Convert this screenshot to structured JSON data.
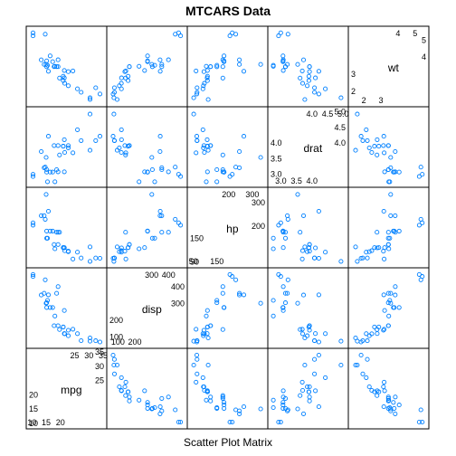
{
  "title": "MTCARS Data",
  "subtitle": "Scatter Plot Matrix",
  "colors": {
    "point": "#0080ff",
    "frame": "#000000",
    "background": "#ffffff"
  },
  "chart_data": {
    "type": "scatter",
    "title": "MTCARS Data",
    "xlabel": "Scatter Plot Matrix",
    "ylabel": "",
    "grid": false,
    "legend": "none",
    "variables": [
      "mpg",
      "disp",
      "hp",
      "drat",
      "wt"
    ],
    "ranges": {
      "mpg": [
        9.3,
        35.0
      ],
      "disp": [
        55,
        490
      ],
      "hp": [
        40,
        350
      ],
      "drat": [
        2.7,
        5.05
      ],
      "wt": [
        1.3,
        5.6
      ]
    },
    "ticks": {
      "mpg": {
        "low": [
          "10",
          "15",
          "20"
        ],
        "high": [
          "25",
          "30",
          "35"
        ]
      },
      "disp": {
        "low": [
          "100",
          "200"
        ],
        "high": [
          "300",
          "400"
        ]
      },
      "hp": {
        "low": [
          "50",
          "150"
        ],
        "high": [
          "200",
          "300"
        ]
      },
      "drat": {
        "low": [
          "3.0",
          "3.5",
          "4.0"
        ],
        "high": [
          "4.0",
          "4.5",
          "5.0"
        ]
      },
      "wt": {
        "low": [
          "2",
          "3"
        ],
        "high": [
          "4",
          "5"
        ]
      }
    },
    "data": {
      "mpg": [
        21.0,
        21.0,
        22.8,
        21.4,
        18.7,
        18.1,
        14.3,
        24.4,
        22.8,
        19.2,
        17.8,
        16.4,
        17.3,
        15.2,
        10.4,
        10.4,
        14.7,
        32.4,
        30.4,
        33.9,
        21.5,
        15.5,
        15.2,
        13.3,
        19.2,
        27.3,
        26.0,
        30.4,
        15.8,
        19.7,
        15.0,
        21.4
      ],
      "disp": [
        160,
        160,
        108,
        258,
        360,
        225,
        360,
        146.7,
        140.8,
        167.6,
        167.6,
        275.8,
        275.8,
        275.8,
        472,
        460,
        440,
        78.7,
        75.7,
        71.1,
        120.1,
        318,
        304,
        350,
        400,
        79,
        120.3,
        95.1,
        351,
        145,
        301,
        121
      ],
      "hp": [
        110,
        110,
        93,
        110,
        175,
        105,
        245,
        62,
        95,
        123,
        123,
        180,
        180,
        180,
        205,
        215,
        230,
        66,
        52,
        65,
        97,
        150,
        150,
        245,
        175,
        66,
        91,
        113,
        264,
        175,
        335,
        109
      ],
      "drat": [
        3.9,
        3.9,
        3.85,
        3.08,
        3.15,
        2.76,
        3.21,
        3.69,
        3.92,
        3.92,
        3.92,
        3.07,
        3.07,
        3.07,
        2.93,
        3.0,
        3.23,
        4.08,
        4.93,
        4.22,
        3.7,
        2.76,
        3.15,
        3.73,
        3.08,
        4.08,
        4.43,
        3.77,
        4.22,
        3.62,
        3.54,
        4.11
      ],
      "wt": [
        2.62,
        2.875,
        2.32,
        3.215,
        3.44,
        3.46,
        3.57,
        3.19,
        3.15,
        3.44,
        3.44,
        4.07,
        3.73,
        3.78,
        5.25,
        5.424,
        5.345,
        2.2,
        1.615,
        1.835,
        2.465,
        3.52,
        3.435,
        3.84,
        3.845,
        1.935,
        2.14,
        1.513,
        3.17,
        2.77,
        3.57,
        2.78
      ]
    }
  }
}
